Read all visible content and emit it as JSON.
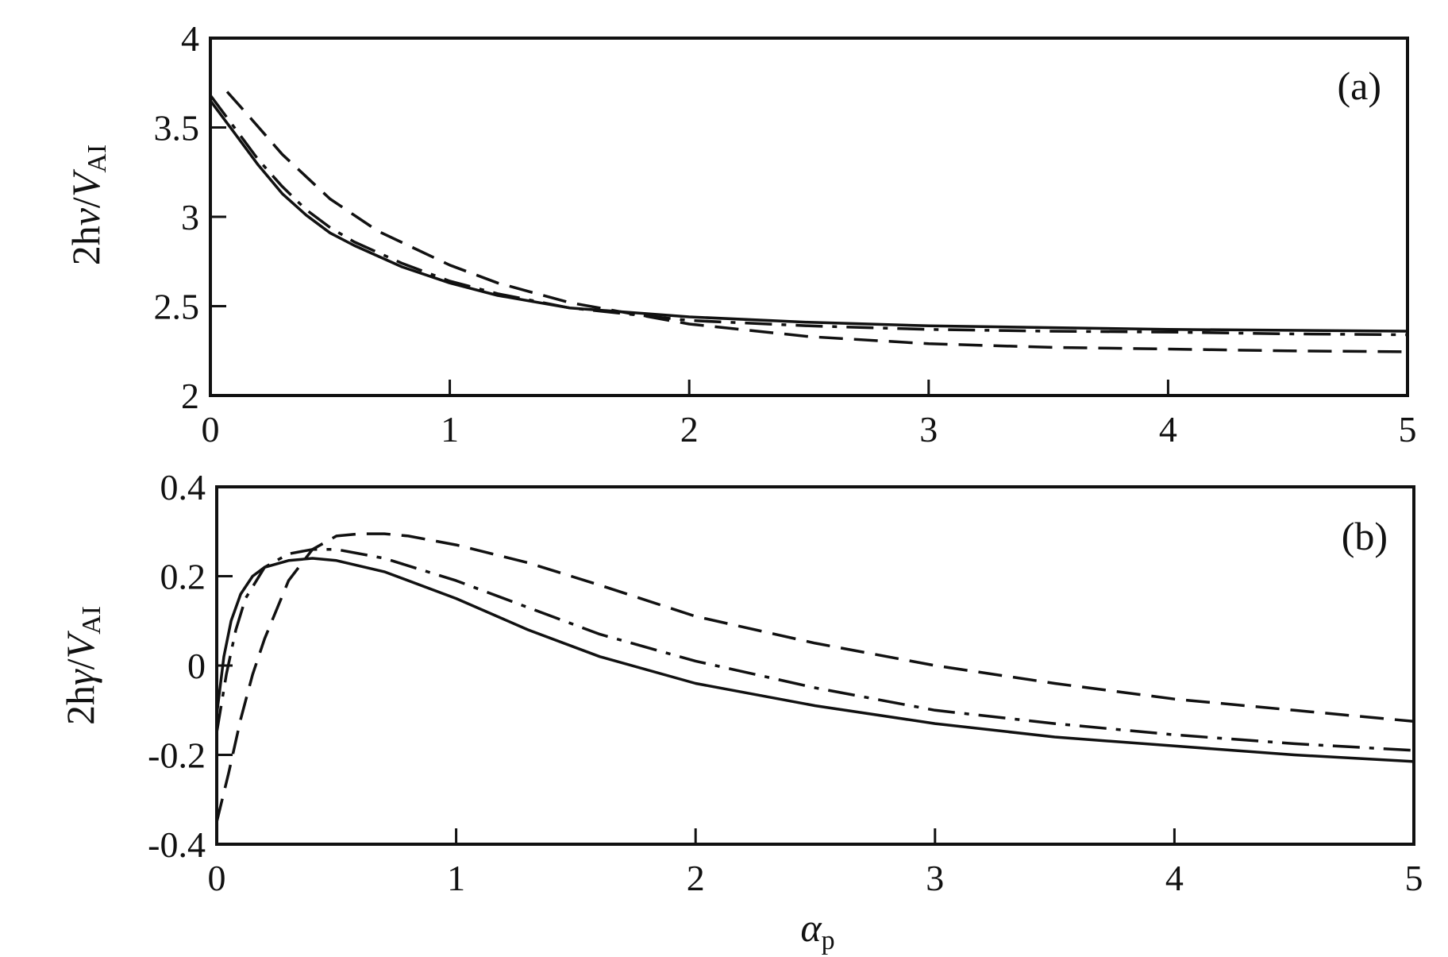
{
  "chart_data": [
    {
      "type": "line",
      "panel_label": "(a)",
      "ylabel": {
        "prefix": "2h",
        "var": "v",
        "slash": "/",
        "V": "V",
        "sub": "AI"
      },
      "xlim": [
        0,
        5
      ],
      "ylim": [
        2,
        4
      ],
      "xticks": [
        0,
        1,
        2,
        3,
        4,
        5
      ],
      "yticks": [
        2,
        2.5,
        3,
        3.5,
        4
      ],
      "xtick_labels": [
        "0",
        "1",
        "2",
        "3",
        "4",
        "5"
      ],
      "ytick_labels": [
        "2",
        "2.5",
        "3",
        "3.5",
        "4"
      ],
      "grid": false,
      "series": [
        {
          "style": "solid",
          "x": [
            0,
            0.1,
            0.2,
            0.3,
            0.4,
            0.5,
            0.6,
            0.8,
            1.0,
            1.2,
            1.5,
            2.0,
            2.5,
            3.0,
            3.5,
            4.0,
            4.5,
            5.0
          ],
          "y": [
            3.65,
            3.47,
            3.29,
            3.13,
            3.01,
            2.91,
            2.84,
            2.72,
            2.63,
            2.56,
            2.49,
            2.44,
            2.41,
            2.39,
            2.38,
            2.37,
            2.365,
            2.36
          ]
        },
        {
          "style": "dash-dot",
          "x": [
            0,
            0.1,
            0.2,
            0.3,
            0.4,
            0.5,
            0.6,
            0.8,
            1.0,
            1.2,
            1.5,
            2.0,
            2.5,
            3.0,
            3.5,
            4.0,
            4.5,
            5.0
          ],
          "y": [
            3.68,
            3.5,
            3.32,
            3.17,
            3.04,
            2.94,
            2.86,
            2.74,
            2.64,
            2.57,
            2.49,
            2.42,
            2.39,
            2.37,
            2.36,
            2.355,
            2.345,
            2.34
          ]
        },
        {
          "style": "dashed",
          "x": [
            0.07,
            0.15,
            0.3,
            0.5,
            0.7,
            1.0,
            1.2,
            1.5,
            2.0,
            2.5,
            3.0,
            3.5,
            4.0,
            4.5,
            5.0
          ],
          "y": [
            3.7,
            3.58,
            3.35,
            3.1,
            2.92,
            2.73,
            2.63,
            2.52,
            2.4,
            2.33,
            2.29,
            2.27,
            2.26,
            2.25,
            2.245
          ]
        }
      ]
    },
    {
      "type": "line",
      "panel_label": "(b)",
      "ylabel": {
        "prefix": "2h",
        "var": "γ",
        "slash": "/",
        "V": "V",
        "sub": "AI"
      },
      "xlabel": {
        "var": "α",
        "sub": "p"
      },
      "xlim": [
        0,
        5
      ],
      "ylim": [
        -0.4,
        0.4
      ],
      "xticks": [
        0,
        1,
        2,
        3,
        4,
        5
      ],
      "yticks": [
        -0.4,
        -0.2,
        0,
        0.2,
        0.4
      ],
      "xtick_labels": [
        "0",
        "1",
        "2",
        "3",
        "4",
        "5"
      ],
      "ytick_labels": [
        "-0.4",
        "-0.2",
        "0",
        "0.2",
        "0.4"
      ],
      "grid": false,
      "series": [
        {
          "style": "solid",
          "x": [
            0,
            0.03,
            0.06,
            0.1,
            0.15,
            0.2,
            0.3,
            0.4,
            0.5,
            0.7,
            1.0,
            1.3,
            1.6,
            2.0,
            2.5,
            3.0,
            3.5,
            4.0,
            4.5,
            5.0
          ],
          "y": [
            -0.11,
            0.02,
            0.1,
            0.16,
            0.2,
            0.22,
            0.235,
            0.24,
            0.235,
            0.21,
            0.15,
            0.08,
            0.02,
            -0.04,
            -0.09,
            -0.13,
            -0.16,
            -0.18,
            -0.2,
            -0.215
          ]
        },
        {
          "style": "dash-dot",
          "x": [
            0,
            0.04,
            0.08,
            0.12,
            0.2,
            0.3,
            0.4,
            0.5,
            0.7,
            1.0,
            1.3,
            1.6,
            2.0,
            2.5,
            3.0,
            3.5,
            4.0,
            4.5,
            5.0
          ],
          "y": [
            -0.15,
            -0.02,
            0.08,
            0.15,
            0.22,
            0.25,
            0.26,
            0.26,
            0.24,
            0.19,
            0.13,
            0.07,
            0.01,
            -0.05,
            -0.1,
            -0.13,
            -0.155,
            -0.175,
            -0.19
          ]
        },
        {
          "style": "dashed",
          "x": [
            0,
            0.05,
            0.1,
            0.15,
            0.2,
            0.3,
            0.4,
            0.5,
            0.6,
            0.7,
            0.8,
            1.0,
            1.3,
            1.6,
            2.0,
            2.5,
            3.0,
            3.5,
            4.0,
            4.5,
            5.0
          ],
          "y": [
            -0.35,
            -0.24,
            -0.12,
            -0.02,
            0.06,
            0.19,
            0.26,
            0.29,
            0.295,
            0.295,
            0.29,
            0.27,
            0.23,
            0.18,
            0.11,
            0.05,
            0.0,
            -0.04,
            -0.075,
            -0.1,
            -0.125
          ]
        }
      ]
    }
  ]
}
